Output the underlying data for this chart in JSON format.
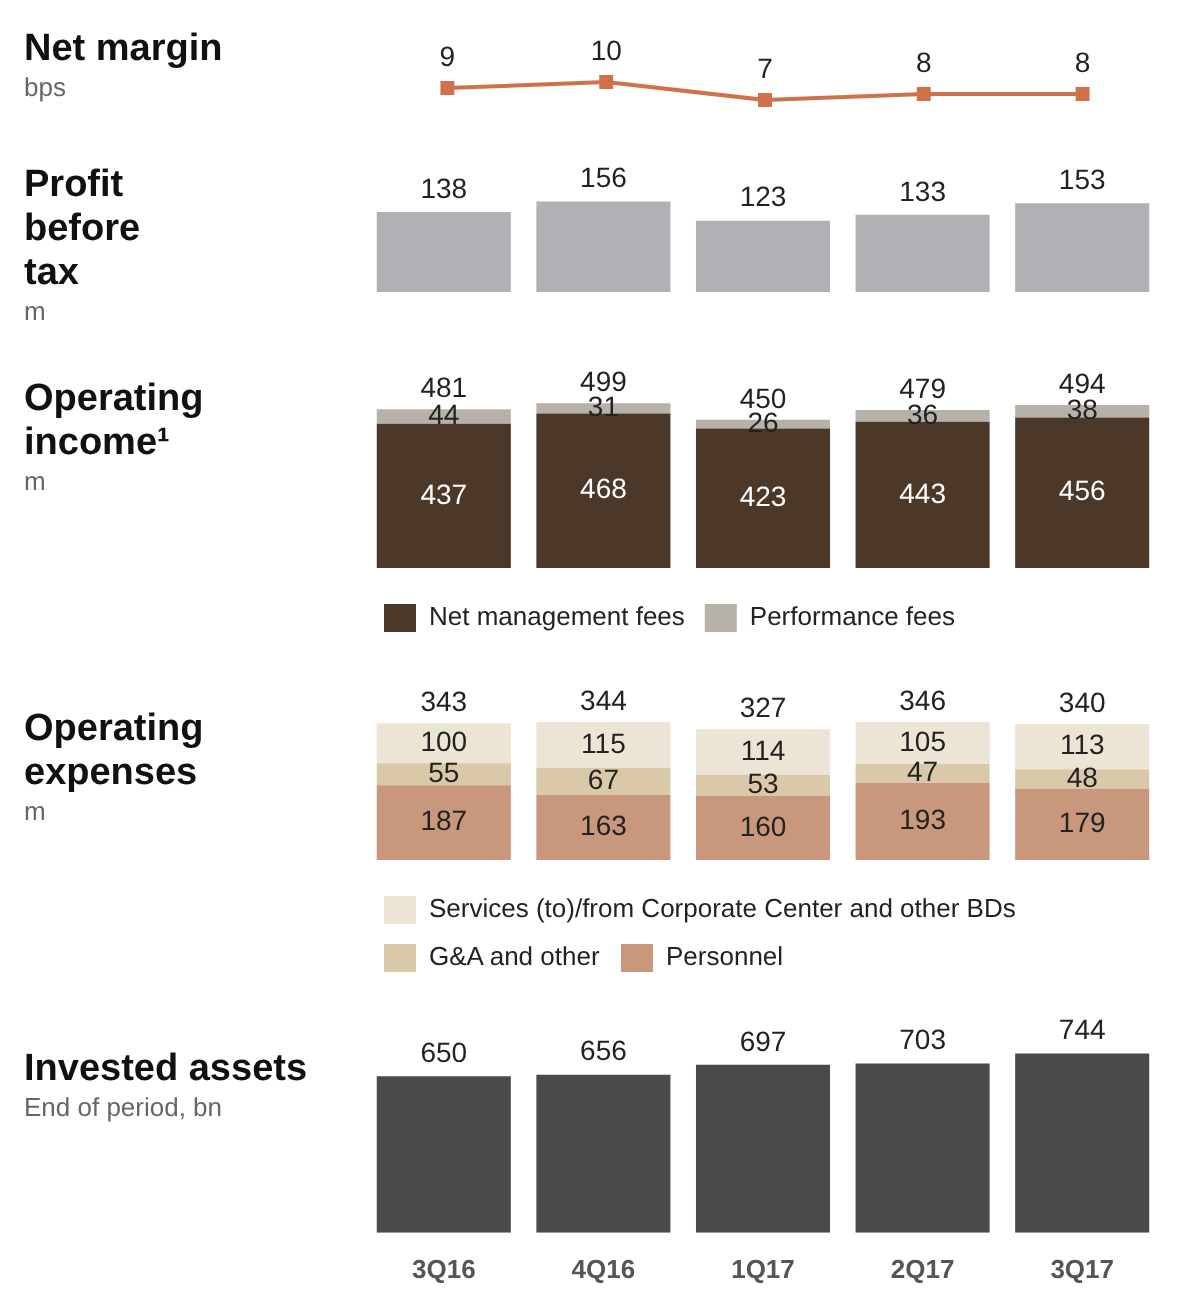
{
  "chart_data": [
    {
      "type": "line",
      "title": "Net margin",
      "ylabel": "bps",
      "categories": [
        null,
        null,
        null,
        null,
        null
      ],
      "values": [
        9,
        10,
        7,
        8,
        8
      ],
      "color": "#d0714b",
      "marker": "square",
      "data_labels": true,
      "tick_labels": false
    },
    {
      "type": "bar",
      "title": "Profit before tax",
      "ylabel": "m",
      "categories": [
        null,
        null,
        null,
        null,
        null
      ],
      "values": [
        138,
        156,
        123,
        133,
        153
      ],
      "color": "#b1b1b5",
      "data_labels": true,
      "tick_labels": false
    },
    {
      "type": "bar",
      "title": "Operating income¹",
      "ylabel": "m",
      "categories": [
        null,
        null,
        null,
        null,
        null
      ],
      "stacked": true,
      "data_labels": true,
      "tick_labels": false,
      "legend": "bottom",
      "series": [
        {
          "name": "Net management fees",
          "color": "#4b3829",
          "values": [
            437,
            468,
            423,
            443,
            456
          ]
        },
        {
          "name": "Performance fees",
          "color": "#b6b1a9",
          "values": [
            44,
            31,
            26,
            36,
            38
          ]
        }
      ],
      "totals": [
        "481",
        "499",
        "450",
        "479",
        "494"
      ]
    },
    {
      "type": "bar",
      "title": "Operating expenses",
      "ylabel": "m",
      "categories": [
        null,
        null,
        null,
        null,
        null
      ],
      "stacked": true,
      "data_labels": true,
      "tick_labels": false,
      "legend": "bottom",
      "series": [
        {
          "name": "Personnel",
          "color": "#c9977b",
          "values": [
            187,
            163,
            160,
            193,
            179
          ]
        },
        {
          "name": "G&A and other",
          "color": "#d9c9a9",
          "values": [
            55,
            67,
            53,
            47,
            48
          ]
        },
        {
          "name": "Services (to)/from Corporate Center and other BDs",
          "color": "#ece4d4",
          "values": [
            100,
            115,
            114,
            105,
            113
          ]
        }
      ],
      "totals": [
        "343",
        "344",
        "327",
        "346",
        "340"
      ]
    },
    {
      "type": "bar",
      "title": "Invested assets",
      "ylabel": "End of period, bn",
      "categories": [
        "3Q16",
        "4Q16",
        "1Q17",
        "2Q17",
        "3Q17"
      ],
      "values": [
        650,
        656,
        697,
        703,
        744
      ],
      "color": "#4a4a4c",
      "data_labels": true,
      "tick_labels": "x"
    }
  ]
}
